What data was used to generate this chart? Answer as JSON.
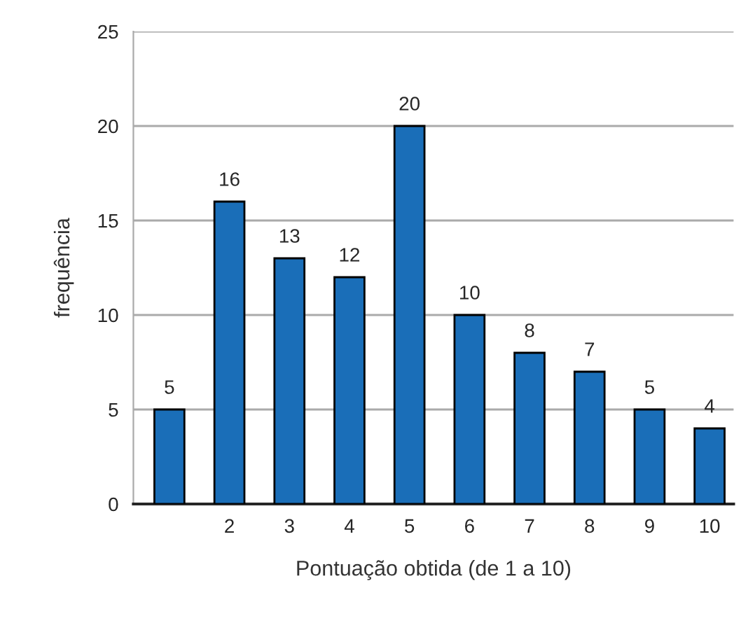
{
  "chart_data": {
    "type": "bar",
    "xlabel": "Pontuação obtida (de 1 a 10)",
    "ylabel": "frequência",
    "categories": [
      null,
      "2",
      "3",
      "4",
      "5",
      "6",
      "7",
      "8",
      "9",
      "10"
    ],
    "values": [
      5,
      16,
      13,
      12,
      20,
      10,
      8,
      7,
      5,
      4
    ],
    "color": "#1a6eb8",
    "ylim": [
      0,
      25
    ],
    "yticks": [
      0,
      5,
      10,
      15,
      20,
      25
    ],
    "grid": "y",
    "data_labels": true
  }
}
